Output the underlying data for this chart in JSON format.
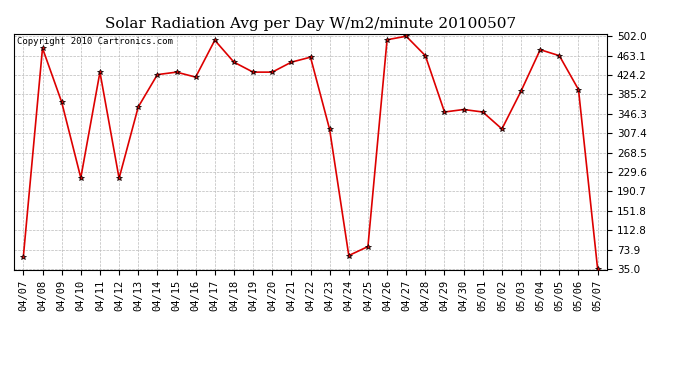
{
  "title": "Solar Radiation Avg per Day W/m2/minute 20100507",
  "copyright": "Copyright 2010 Cartronics.com",
  "labels": [
    "04/07",
    "04/08",
    "04/09",
    "04/10",
    "04/11",
    "04/12",
    "04/13",
    "04/14",
    "04/15",
    "04/16",
    "04/17",
    "04/18",
    "04/19",
    "04/20",
    "04/21",
    "04/22",
    "04/23",
    "04/24",
    "04/25",
    "04/26",
    "04/27",
    "04/28",
    "04/29",
    "04/30",
    "05/01",
    "05/02",
    "05/03",
    "05/04",
    "05/05",
    "05/06",
    "05/07"
  ],
  "values": [
    60,
    478,
    370,
    218,
    430,
    217,
    360,
    425,
    430,
    420,
    494,
    450,
    430,
    430,
    450,
    460,
    315,
    62,
    80,
    495,
    502,
    463,
    350,
    355,
    350,
    316,
    392,
    475,
    463,
    395,
    35
  ],
  "yticks": [
    35.0,
    73.9,
    112.8,
    151.8,
    190.7,
    229.6,
    268.5,
    307.4,
    346.3,
    385.2,
    424.2,
    463.1,
    502.0
  ],
  "line_color": "#dd0000",
  "marker": "*",
  "marker_color": "#000000",
  "marker_size": 4,
  "background_color": "#ffffff",
  "grid_color": "#bbbbbb",
  "title_fontsize": 11,
  "tick_fontsize": 7.5,
  "copyright_fontsize": 6.5,
  "ymin": 35.0,
  "ymax": 502.0
}
